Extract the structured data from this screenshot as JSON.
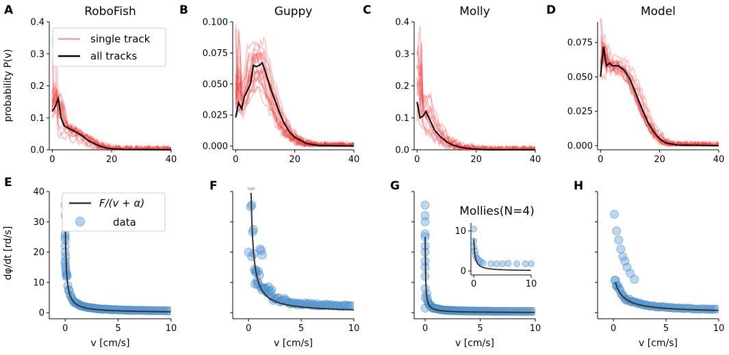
{
  "figure": {
    "top_ylabel": "probability P(v)",
    "bottom_ylabel": "dφ/dt [rd/s]",
    "bottom_xlabel": "v [cm/s]"
  },
  "legend_top": {
    "single": "single track",
    "all": "all tracks"
  },
  "legend_bottom": {
    "fit": "F/(v + α)",
    "data": "data"
  },
  "colors": {
    "track": "#f03a3a",
    "mean": "#000000",
    "dot": "#5b9bd5",
    "dot_edge": "#2f78b8",
    "fit": "#333333"
  },
  "chart_data": [
    {
      "panel": "A",
      "title": "RoboFish",
      "type": "line",
      "xlim": [
        -1,
        40
      ],
      "ylim": [
        0,
        0.4
      ],
      "xticks": [
        0,
        20,
        40
      ],
      "yticks": [
        0.0,
        0.1,
        0.2,
        0.3,
        0.4
      ],
      "ytick_labels": [
        "0.0",
        "0.1",
        "0.2",
        "0.3",
        "0.4"
      ],
      "mean": [
        [
          0,
          0.12
        ],
        [
          1,
          0.135
        ],
        [
          2,
          0.16
        ],
        [
          3,
          0.1
        ],
        [
          4,
          0.075
        ],
        [
          6,
          0.065
        ],
        [
          8,
          0.055
        ],
        [
          10,
          0.045
        ],
        [
          12,
          0.03
        ],
        [
          14,
          0.02
        ],
        [
          16,
          0.012
        ],
        [
          18,
          0.006
        ],
        [
          20,
          0.003
        ],
        [
          24,
          0.001
        ],
        [
          40,
          0.0
        ]
      ],
      "tracks": {
        "count": 14,
        "peak": 0.32,
        "spread": 0.35
      }
    },
    {
      "panel": "B",
      "title": "Guppy",
      "type": "line",
      "xlim": [
        -1,
        40
      ],
      "ylim": [
        -0.003,
        0.1
      ],
      "xticks": [
        0,
        20,
        40
      ],
      "yticks": [
        0.0,
        0.025,
        0.05,
        0.075,
        0.1
      ],
      "ytick_labels": [
        "0.000",
        "0.025",
        "0.050",
        "0.075",
        "0.100"
      ],
      "mean": [
        [
          0,
          0.023
        ],
        [
          1,
          0.035
        ],
        [
          2,
          0.03
        ],
        [
          3,
          0.04
        ],
        [
          4,
          0.045
        ],
        [
          5,
          0.05
        ],
        [
          6,
          0.065
        ],
        [
          7,
          0.064
        ],
        [
          8,
          0.065
        ],
        [
          9,
          0.067
        ],
        [
          10,
          0.06
        ],
        [
          12,
          0.045
        ],
        [
          14,
          0.032
        ],
        [
          16,
          0.02
        ],
        [
          18,
          0.012
        ],
        [
          20,
          0.007
        ],
        [
          24,
          0.002
        ],
        [
          28,
          0.0005
        ],
        [
          40,
          0.0
        ]
      ],
      "tracks": {
        "count": 20,
        "peak": 0.095,
        "spread": 0.35
      }
    },
    {
      "panel": "C",
      "title": "Molly",
      "type": "line",
      "xlim": [
        -1,
        40
      ],
      "ylim": [
        0,
        0.4
      ],
      "xticks": [
        0,
        20,
        40
      ],
      "yticks": [
        0.0,
        0.1,
        0.2,
        0.3,
        0.4
      ],
      "ytick_labels": [
        "0.0",
        "0.1",
        "0.2",
        "0.3",
        "0.4"
      ],
      "mean": [
        [
          0,
          0.15
        ],
        [
          1,
          0.1
        ],
        [
          2,
          0.105
        ],
        [
          3,
          0.12
        ],
        [
          4,
          0.1
        ],
        [
          6,
          0.06
        ],
        [
          8,
          0.04
        ],
        [
          10,
          0.025
        ],
        [
          12,
          0.015
        ],
        [
          14,
          0.01
        ],
        [
          16,
          0.006
        ],
        [
          20,
          0.002
        ],
        [
          24,
          0.0
        ],
        [
          40,
          0.0
        ]
      ],
      "tracks": {
        "count": 14,
        "peak": 0.35,
        "spread": 0.5
      }
    },
    {
      "panel": "D",
      "title": "Model",
      "type": "line",
      "xlim": [
        -1,
        40
      ],
      "ylim": [
        -0.003,
        0.09
      ],
      "xticks": [
        0,
        20,
        40
      ],
      "yticks": [
        0.0,
        0.025,
        0.05,
        0.075
      ],
      "ytick_labels": [
        "0.000",
        "0.025",
        "0.050",
        "0.075"
      ],
      "mean": [
        [
          0,
          0.05
        ],
        [
          1,
          0.072
        ],
        [
          2,
          0.058
        ],
        [
          3,
          0.06
        ],
        [
          4,
          0.058
        ],
        [
          6,
          0.058
        ],
        [
          8,
          0.055
        ],
        [
          10,
          0.048
        ],
        [
          12,
          0.038
        ],
        [
          14,
          0.027
        ],
        [
          16,
          0.017
        ],
        [
          18,
          0.01
        ],
        [
          20,
          0.005
        ],
        [
          22,
          0.002
        ],
        [
          26,
          0.0005
        ],
        [
          40,
          0.0
        ]
      ],
      "tracks": {
        "count": 16,
        "peak": 0.088,
        "spread": 0.08
      }
    },
    {
      "panel": "E",
      "type": "scatter",
      "xlim": [
        -1.5,
        10
      ],
      "ylim": [
        -2,
        40
      ],
      "xticks": [
        0,
        5,
        10
      ],
      "yticks": [
        0,
        10,
        20,
        30,
        40
      ],
      "ytick_labels": [
        "0",
        "10",
        "20",
        "30",
        "40"
      ],
      "fit": {
        "F": 3.2,
        "alpha": 0.1
      },
      "cluster": [
        [
          0,
          35.5
        ],
        [
          0,
          32
        ],
        [
          0,
          26
        ],
        [
          0,
          25
        ],
        [
          0,
          24
        ],
        [
          0,
          22
        ],
        [
          0,
          20
        ],
        [
          0.05,
          18.5
        ],
        [
          0,
          17
        ],
        [
          0,
          16
        ],
        [
          0.05,
          15
        ],
        [
          0.1,
          13
        ],
        [
          0.1,
          12
        ],
        [
          0.05,
          14
        ]
      ],
      "points": {
        "count": 70,
        "x_max": 10,
        "noise": 0.2
      }
    },
    {
      "panel": "F",
      "type": "scatter",
      "xlim": [
        -1.5,
        10
      ],
      "ylim": [
        -2,
        40
      ],
      "xticks": [
        0,
        5,
        10
      ],
      "yticks": [
        0,
        10,
        20,
        30,
        40
      ],
      "fit": {
        "F": 9.5,
        "alpha": 0.0
      },
      "fit_start": 0.24,
      "cluster": [
        [
          0.2,
          35
        ],
        [
          0,
          20
        ],
        [
          0.3,
          18.5
        ],
        [
          0.5,
          19.5
        ],
        [
          1.1,
          21
        ],
        [
          1.2,
          20.5
        ],
        [
          1.3,
          19
        ],
        [
          0.7,
          14
        ],
        [
          0.8,
          10.5
        ],
        [
          0.6,
          9.5
        ],
        [
          0.9,
          9.8
        ],
        [
          1.6,
          8
        ],
        [
          1.9,
          8.5
        ],
        [
          2.2,
          7.5
        ]
      ],
      "points": {
        "count": 70,
        "x_max": 10,
        "noise": 0.6
      }
    },
    {
      "panel": "G",
      "type": "scatter",
      "xlim": [
        -1,
        10
      ],
      "ylim": [
        -2,
        40
      ],
      "xticks": [
        0,
        5,
        10
      ],
      "yticks": [
        0,
        10,
        20,
        30,
        40
      ],
      "fit": {
        "F": 1.0,
        "alpha": 0.04
      },
      "cluster": [
        [
          0,
          35.5
        ],
        [
          0,
          32
        ],
        [
          0,
          30
        ],
        [
          0,
          26
        ],
        [
          0,
          25
        ],
        [
          0,
          22
        ],
        [
          0,
          20
        ],
        [
          0,
          17
        ],
        [
          0,
          15
        ],
        [
          0,
          12
        ],
        [
          0,
          8
        ],
        [
          0,
          5
        ],
        [
          0,
          1.5
        ]
      ],
      "points": {
        "count": 70,
        "x_max": 10,
        "noise": 0.3
      },
      "inset": {
        "title": "Mollies(N=4)",
        "xlim": [
          -0.5,
          10
        ],
        "ylim": [
          -1,
          12
        ],
        "xticks": [
          0,
          10
        ],
        "yticks": [
          0,
          10
        ],
        "fit": {
          "F": 1.6,
          "alpha": 0.2
        },
        "cluster": [
          [
            0,
            10.5
          ],
          [
            0,
            7.5
          ],
          [
            0,
            6
          ],
          [
            0.2,
            5
          ],
          [
            0.3,
            4
          ],
          [
            0.5,
            3.2
          ],
          [
            0.8,
            2.8
          ],
          [
            1.2,
            2.3
          ],
          [
            1.6,
            2.0
          ]
        ],
        "tail": [
          [
            3,
            1.8
          ],
          [
            4,
            1.8
          ],
          [
            5,
            1.8
          ],
          [
            6,
            1.9
          ],
          [
            7.5,
            1.8
          ],
          [
            9,
            1.8
          ],
          [
            10,
            1.8
          ]
        ]
      }
    },
    {
      "panel": "H",
      "type": "scatter",
      "xlim": [
        -1.5,
        10
      ],
      "ylim": [
        -2,
        40
      ],
      "xticks": [
        0,
        5,
        10
      ],
      "yticks": [
        0,
        10,
        20,
        30,
        40
      ],
      "fit": {
        "F": 8.0,
        "alpha": 0.6
      },
      "fit_start": 0.2,
      "cluster": [
        [
          0.1,
          32.5
        ],
        [
          0.3,
          27
        ],
        [
          0.5,
          24
        ],
        [
          0.7,
          21
        ],
        [
          0.9,
          18.5
        ],
        [
          1.1,
          17
        ],
        [
          1.3,
          15
        ],
        [
          1.6,
          13
        ],
        [
          2,
          11
        ]
      ],
      "points": {
        "count": 60,
        "x_max": 10,
        "noise": 0.25
      }
    }
  ]
}
